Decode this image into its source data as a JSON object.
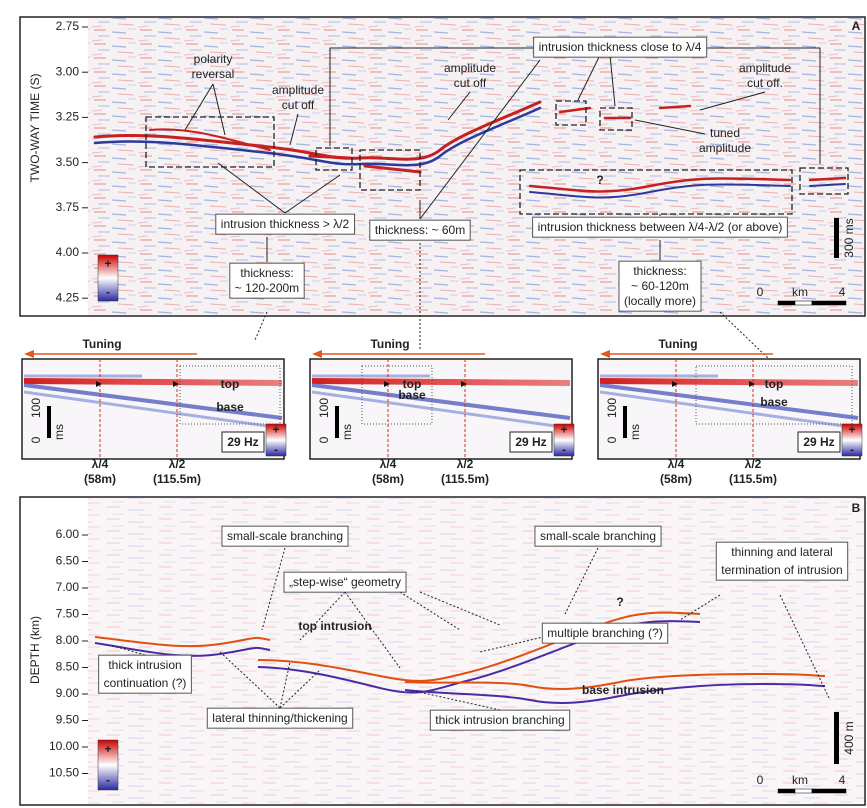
{
  "panel_a": {
    "label": "A",
    "y_axis_title": "TWO-WAY TIME (S)",
    "y_ticks": [
      "2.75",
      "3.00",
      "3.25",
      "3.50",
      "3.75",
      "4.00",
      "4.25"
    ],
    "annotations": [
      [
        "polarity",
        "reversal"
      ],
      [
        "amplitude",
        "cut off"
      ],
      [
        "intrusion thickness close to λ/4"
      ],
      [
        "amplitude",
        "cut off"
      ],
      [
        "amplitude",
        "cut off."
      ],
      [
        "tuned",
        "amplitude"
      ],
      [
        "?"
      ],
      [
        "intrusion thickness > λ/2"
      ],
      [
        "thickness: ~ 60m"
      ],
      [
        "intrusion thickness between λ/4-λ/2 (or above)"
      ],
      [
        "thickness:",
        "~ 120-200m"
      ],
      [
        "thickness:",
        "~ 60-120m",
        "(locally more)"
      ]
    ],
    "time_scale": "300 ms",
    "km_scale": [
      "0",
      "km",
      "4"
    ],
    "polarity": [
      "+",
      "-"
    ]
  },
  "tuning": {
    "arrow_label": "Tuning",
    "panels": [
      {
        "top": "top",
        "base": "base",
        "frequency": "29 Hz",
        "scale": [
          "100",
          "ms",
          "0"
        ],
        "polarity": [
          "+",
          "-"
        ],
        "lambda4": [
          "λ/4",
          "(58m)"
        ],
        "lambda2": [
          "λ/2",
          "(115.5m)"
        ]
      },
      {
        "top": "top",
        "base": "base",
        "frequency": "29 Hz",
        "scale": [
          "100",
          "ms",
          "0"
        ],
        "polarity": [
          "+",
          "-"
        ],
        "lambda4": [
          "λ/4",
          "(58m)"
        ],
        "lambda2": [
          "λ/2",
          "(115.5m)"
        ]
      },
      {
        "top": "top",
        "base": "base",
        "frequency": "29 Hz",
        "scale": [
          "100",
          "ms",
          "0"
        ],
        "polarity": [
          "+",
          "-"
        ],
        "lambda4": [
          "λ/4",
          "(58m)"
        ],
        "lambda2": [
          "λ/2",
          "(115.5m)"
        ]
      }
    ]
  },
  "panel_b": {
    "label": "B",
    "y_axis_title": "DEPTH (km)",
    "y_ticks": [
      "6.00",
      "6.50",
      "7.00",
      "7.50",
      "8.00",
      "8.50",
      "9.00",
      "9.50",
      "10.00",
      "10.50"
    ],
    "annotations": [
      [
        "small-scale branching"
      ],
      [
        "small-scale branching"
      ],
      [
        "thinning and lateral",
        "termination of intrusion"
      ],
      [
        "„step-wise“ geometry"
      ],
      [
        "top intrusion"
      ],
      [
        "multiple branching (?)"
      ],
      [
        "?"
      ],
      [
        "thick intrusion",
        "continuation (?)"
      ],
      [
        "base intrusion"
      ],
      [
        "lateral thinning/thickening"
      ],
      [
        "thick intrusion branching"
      ]
    ],
    "depth_scale": "400 m",
    "km_scale": [
      "0",
      "km",
      "4"
    ],
    "polarity": [
      "+",
      "-"
    ]
  }
}
